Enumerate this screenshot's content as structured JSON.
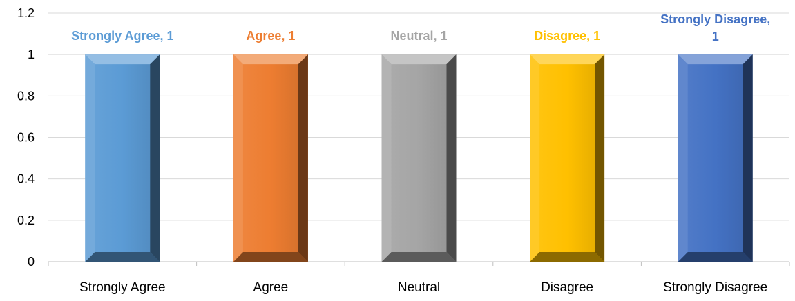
{
  "chart_data": {
    "type": "bar",
    "categories": [
      "Strongly Agree",
      "Agree",
      "Neutral",
      "Disagree",
      "Strongly Disagree"
    ],
    "values": [
      1,
      1,
      1,
      1,
      1
    ],
    "data_labels": [
      [
        "Strongly Agree, 1"
      ],
      [
        "Agree, 1"
      ],
      [
        "Neutral, 1"
      ],
      [
        "Disagree, 1"
      ],
      [
        "Strongly Disagree,",
        "1"
      ]
    ],
    "colors": [
      "#5B9BD5",
      "#ED7D31",
      "#A5A5A5",
      "#FFC000",
      "#4472C4"
    ],
    "yticks": [
      "0",
      "0.2",
      "0.4",
      "0.6",
      "0.8",
      "1",
      "1.2"
    ],
    "ylim": [
      0,
      1.2
    ],
    "title": "",
    "xlabel": "",
    "ylabel": "",
    "grid": true,
    "legend": "none"
  }
}
